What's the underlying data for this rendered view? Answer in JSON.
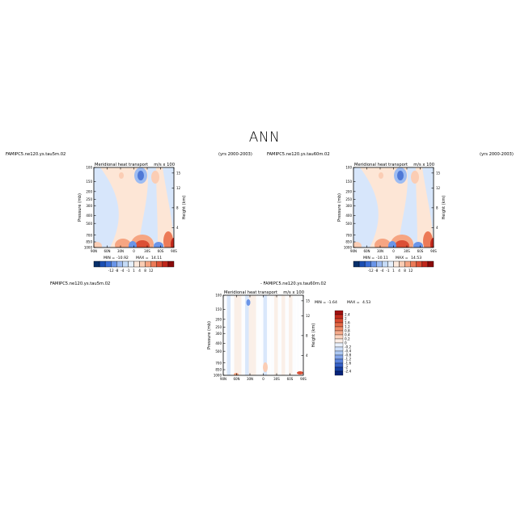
{
  "figure": {
    "title": "ANN"
  },
  "chart_data": [
    {
      "type": "heatmap",
      "case_name": "FAMIPC5.ne120.ys.tau5m.02",
      "title": "Meridional heat transport",
      "units": "m/s x 100",
      "years": "(yrs 2000-2003)",
      "xlabel": "",
      "ylabel": "Pressure (mb)",
      "ylabel_right": "Height (km)",
      "x_ticks": [
        "90N",
        "60N",
        "30N",
        "0",
        "30S",
        "60S",
        "90S"
      ],
      "y_ticks": [
        "100",
        "150",
        "200",
        "250",
        "300",
        "400",
        "500",
        "700",
        "850",
        "1000"
      ],
      "y_ticks_right": [
        "15",
        "12",
        "8",
        "4"
      ],
      "colorbar_ticks": [
        "-12",
        "-8",
        "-4",
        "-1",
        "1",
        "4",
        "8",
        "12"
      ],
      "min_label": "MIN =",
      "min": "-10.92",
      "max_label": "MAX =",
      "max": "14.11"
    },
    {
      "type": "heatmap",
      "case_name": "FAMIPC5.ne120.ys.tau60m.02",
      "title": "Meridional heat transport",
      "units": "m/s x 100",
      "years": "(yrs 2000-2003)",
      "xlabel": "",
      "ylabel": "Pressure (mb)",
      "ylabel_right": "Height (km)",
      "x_ticks": [
        "90N",
        "60N",
        "30N",
        "0",
        "30S",
        "60S",
        "90S"
      ],
      "y_ticks": [
        "100",
        "150",
        "200",
        "250",
        "300",
        "400",
        "500",
        "700",
        "850",
        "1000"
      ],
      "y_ticks_right": [
        "15",
        "12",
        "8",
        "4"
      ],
      "colorbar_ticks": [
        "-12",
        "-8",
        "-4",
        "-1",
        "1",
        "4",
        "8",
        "12"
      ],
      "min_label": "MIN =",
      "min": "-10.11",
      "max_label": "MAX =",
      "max": "14.53"
    },
    {
      "type": "heatmap",
      "case_name": "FAMIPC5.ne120.ys.tau5m.02",
      "diff_label": "- FAMIPC5.ne120.ys.tau60m.02",
      "title": "Meridional heat transport",
      "units": "m/s x 100",
      "xlabel": "",
      "ylabel": "Pressure (mb)",
      "ylabel_right": "Height (km)",
      "x_ticks": [
        "90N",
        "60N",
        "30N",
        "0",
        "30S",
        "60S",
        "90S"
      ],
      "y_ticks": [
        "100",
        "150",
        "200",
        "250",
        "300",
        "400",
        "500",
        "700",
        "850",
        "1000"
      ],
      "y_ticks_right": [
        "15",
        "12",
        "8",
        "4"
      ],
      "colorbar_ticks": [
        "2.4",
        "2",
        "1.6",
        "1.2",
        "0.8",
        "0.4",
        "0.2",
        "0",
        "-0.2",
        "-0.4",
        "-0.8",
        "-1.2",
        "-1.6",
        "-2",
        "-2.4"
      ],
      "min_label": "MIN =",
      "min": "-1.64",
      "max_label": "MAX =",
      "max": "4.53"
    }
  ],
  "colors": {
    "horizontal_scale": [
      "#08306b",
      "#1c4fb3",
      "#3b6fd8",
      "#6a95e8",
      "#9dbcf2",
      "#c6dcf8",
      "#e6f0fc",
      "#fde9dc",
      "#fbcdb4",
      "#f6a582",
      "#ec7a57",
      "#db4f35",
      "#c0271b",
      "#8b0a0a"
    ],
    "vertical_scale": [
      "#a01010",
      "#c42a1c",
      "#d94a30",
      "#e56a48",
      "#ee8a66",
      "#f5ab8c",
      "#fbd3be",
      "#fbeee6",
      "#eaf1fc",
      "#cfe0fa",
      "#adc8f3",
      "#84a6ea",
      "#5a83de",
      "#3560c8",
      "#163fa3",
      "#06237a"
    ]
  }
}
